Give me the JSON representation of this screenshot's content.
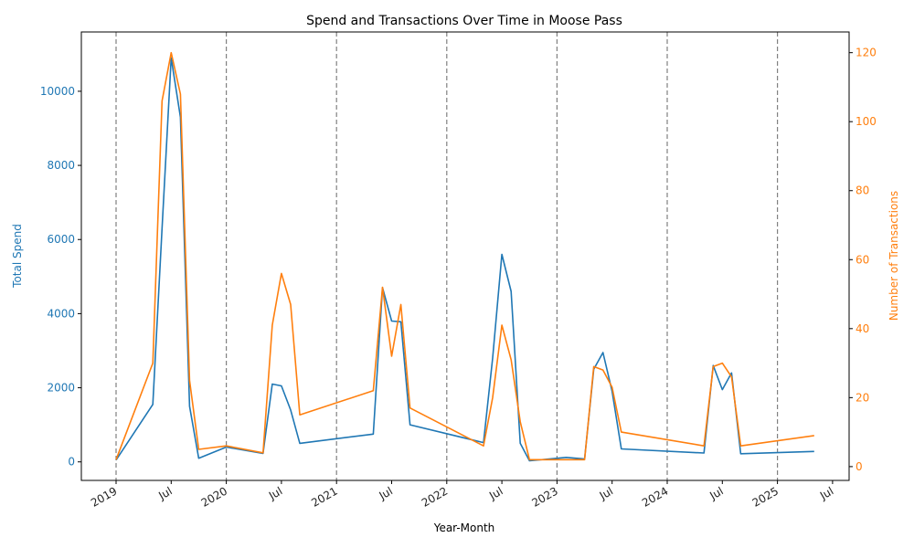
{
  "chart_data": {
    "type": "line",
    "title": "Spend and Transactions Over Time in Moose Pass",
    "xlabel": "Year-Month",
    "y_left_label": "Total Spend",
    "y_right_label": "Number of Transactions",
    "x_tick_labels": [
      "2019",
      "Jul",
      "2020",
      "Jul",
      "2021",
      "Jul",
      "2022",
      "Jul",
      "2023",
      "Jul",
      "2024",
      "Jul",
      "2025",
      "Jul"
    ],
    "y_left_ticks": [
      0,
      2000,
      4000,
      6000,
      8000,
      10000
    ],
    "y_right_ticks": [
      0,
      20,
      40,
      60,
      80,
      100,
      120
    ],
    "y_left_range": [
      -500,
      11600
    ],
    "y_right_range": [
      -4,
      126
    ],
    "year_markers": [
      "2019-01",
      "2020-01",
      "2021-01",
      "2022-01",
      "2023-01",
      "2024-01",
      "2025-01"
    ],
    "grid": false,
    "colors": {
      "spend": "#1f77b4",
      "transactions": "#ff7f0e",
      "year_marker": "#808080"
    },
    "series": [
      {
        "name": "Total Spend",
        "axis": "left",
        "points": [
          [
            "2019-01",
            50
          ],
          [
            "2019-05",
            1550
          ],
          [
            "2019-06",
            6300
          ],
          [
            "2019-07",
            10900
          ],
          [
            "2019-08",
            9300
          ],
          [
            "2019-09",
            1500
          ],
          [
            "2019-10",
            100
          ],
          [
            "2020-01",
            400
          ],
          [
            "2020-05",
            230
          ],
          [
            "2020-06",
            2100
          ],
          [
            "2020-07",
            2050
          ],
          [
            "2020-08",
            1400
          ],
          [
            "2020-09",
            500
          ],
          [
            "2021-05",
            750
          ],
          [
            "2021-06",
            4700
          ],
          [
            "2021-07",
            3800
          ],
          [
            "2021-08",
            3780
          ],
          [
            "2021-09",
            1000
          ],
          [
            "2022-05",
            520
          ],
          [
            "2022-06",
            2800
          ],
          [
            "2022-07",
            5600
          ],
          [
            "2022-08",
            4600
          ],
          [
            "2022-09",
            500
          ],
          [
            "2022-10",
            30
          ],
          [
            "2023-02",
            120
          ],
          [
            "2023-04",
            80
          ],
          [
            "2023-05",
            2500
          ],
          [
            "2023-06",
            2950
          ],
          [
            "2023-07",
            1900
          ],
          [
            "2023-08",
            350
          ],
          [
            "2024-05",
            240
          ],
          [
            "2024-06",
            2600
          ],
          [
            "2024-07",
            1950
          ],
          [
            "2024-08",
            2400
          ],
          [
            "2024-09",
            220
          ],
          [
            "2025-05",
            280
          ]
        ]
      },
      {
        "name": "Number of Transactions",
        "axis": "right",
        "points": [
          [
            "2019-01",
            2
          ],
          [
            "2019-05",
            30
          ],
          [
            "2019-06",
            106
          ],
          [
            "2019-07",
            120
          ],
          [
            "2019-08",
            108
          ],
          [
            "2019-09",
            25
          ],
          [
            "2019-10",
            5
          ],
          [
            "2020-01",
            6
          ],
          [
            "2020-05",
            4
          ],
          [
            "2020-06",
            41
          ],
          [
            "2020-07",
            56
          ],
          [
            "2020-08",
            47
          ],
          [
            "2020-09",
            15
          ],
          [
            "2021-05",
            22
          ],
          [
            "2021-06",
            52
          ],
          [
            "2021-07",
            32
          ],
          [
            "2021-08",
            47
          ],
          [
            "2021-09",
            17
          ],
          [
            "2022-05",
            6
          ],
          [
            "2022-06",
            20
          ],
          [
            "2022-07",
            41
          ],
          [
            "2022-08",
            31
          ],
          [
            "2022-09",
            13
          ],
          [
            "2022-10",
            2
          ],
          [
            "2023-02",
            2
          ],
          [
            "2023-04",
            2
          ],
          [
            "2023-05",
            29
          ],
          [
            "2023-06",
            28
          ],
          [
            "2023-07",
            23
          ],
          [
            "2023-08",
            10
          ],
          [
            "2024-05",
            6
          ],
          [
            "2024-06",
            29
          ],
          [
            "2024-07",
            30
          ],
          [
            "2024-08",
            26
          ],
          [
            "2024-09",
            6
          ],
          [
            "2025-05",
            9
          ]
        ]
      }
    ]
  }
}
